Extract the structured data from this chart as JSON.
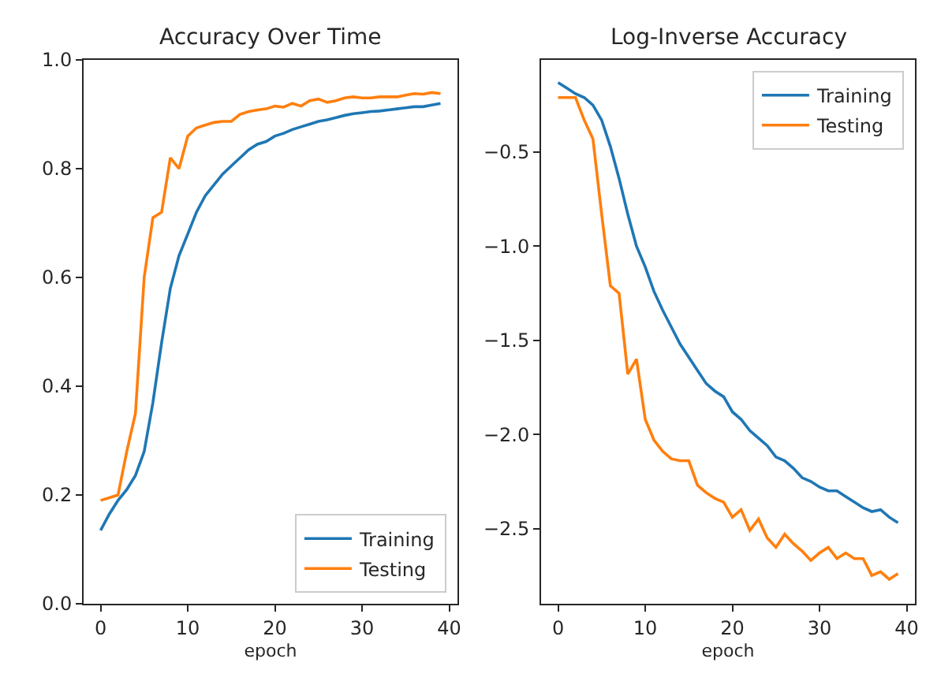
{
  "chart_data": [
    {
      "type": "line",
      "title": "Accuracy Over Time",
      "xlabel": "epoch",
      "x": [
        0,
        1,
        2,
        3,
        4,
        5,
        6,
        7,
        8,
        9,
        10,
        11,
        12,
        13,
        14,
        15,
        16,
        17,
        18,
        19,
        20,
        21,
        22,
        23,
        24,
        25,
        26,
        27,
        28,
        29,
        30,
        31,
        32,
        33,
        34,
        35,
        36,
        37,
        38,
        39
      ],
      "xlim": [
        -1.95,
        40.95
      ],
      "xticks": [
        0,
        10,
        20,
        30,
        40
      ],
      "ylim": [
        0,
        1
      ],
      "yticks": [
        {
          "value": 0,
          "label": "0.0"
        },
        {
          "value": 0.2,
          "label": "0.2"
        },
        {
          "value": 0.4,
          "label": "0.4"
        },
        {
          "value": 0.6,
          "label": "0.6"
        },
        {
          "value": 0.8,
          "label": "0.8"
        },
        {
          "value": 1,
          "label": "1.0"
        }
      ],
      "legend": "bottom right",
      "grid": false,
      "series": [
        {
          "name": "Training",
          "color": "#1f77b4",
          "values": [
            0.135,
            0.165,
            0.19,
            0.21,
            0.236,
            0.28,
            0.37,
            0.48,
            0.58,
            0.64,
            0.68,
            0.72,
            0.75,
            0.77,
            0.79,
            0.805,
            0.82,
            0.835,
            0.845,
            0.85,
            0.86,
            0.865,
            0.872,
            0.877,
            0.882,
            0.887,
            0.89,
            0.894,
            0.898,
            0.901,
            0.903,
            0.905,
            0.906,
            0.908,
            0.91,
            0.912,
            0.914,
            0.914,
            0.917,
            0.92
          ]
        },
        {
          "name": "Testing",
          "color": "#ff7f0e",
          "values": [
            0.19,
            0.195,
            0.2,
            0.28,
            0.35,
            0.6,
            0.71,
            0.72,
            0.82,
            0.8,
            0.86,
            0.875,
            0.88,
            0.885,
            0.887,
            0.887,
            0.9,
            0.905,
            0.908,
            0.91,
            0.915,
            0.913,
            0.92,
            0.915,
            0.925,
            0.928,
            0.922,
            0.925,
            0.93,
            0.932,
            0.93,
            0.93,
            0.932,
            0.932,
            0.932,
            0.935,
            0.938,
            0.937,
            0.94,
            0.938
          ]
        }
      ]
    },
    {
      "type": "line",
      "title": "Log-Inverse Accuracy",
      "xlabel": "epoch",
      "x": [
        0,
        1,
        2,
        3,
        4,
        5,
        6,
        7,
        8,
        9,
        10,
        11,
        12,
        13,
        14,
        15,
        16,
        17,
        18,
        19,
        20,
        21,
        22,
        23,
        24,
        25,
        26,
        27,
        28,
        29,
        30,
        31,
        32,
        33,
        34,
        35,
        36,
        37,
        38,
        39
      ],
      "xlim": [
        -1.95,
        40.95
      ],
      "xticks": [
        0,
        10,
        20,
        30,
        40
      ],
      "ylim": [
        -2.9,
        -0.01
      ],
      "yticks": [
        {
          "value": -0.5,
          "label": "−0.5"
        },
        {
          "value": -1,
          "label": "−1.0"
        },
        {
          "value": -1.5,
          "label": "−1.5"
        },
        {
          "value": -2,
          "label": "−2.0"
        },
        {
          "value": -2.5,
          "label": "−2.5"
        }
      ],
      "legend": "top right",
      "grid": false,
      "series": [
        {
          "name": "Training",
          "color": "#1f77b4",
          "values": [
            -0.13,
            -0.16,
            -0.19,
            -0.21,
            -0.25,
            -0.33,
            -0.47,
            -0.64,
            -0.83,
            -1.0,
            -1.11,
            -1.24,
            -1.34,
            -1.43,
            -1.52,
            -1.59,
            -1.66,
            -1.73,
            -1.77,
            -1.8,
            -1.88,
            -1.92,
            -1.98,
            -2.02,
            -2.06,
            -2.12,
            -2.14,
            -2.18,
            -2.23,
            -2.25,
            -2.28,
            -2.3,
            -2.3,
            -2.33,
            -2.36,
            -2.39,
            -2.41,
            -2.4,
            -2.44,
            -2.47
          ]
        },
        {
          "name": "Testing",
          "color": "#ff7f0e",
          "values": [
            -0.21,
            -0.21,
            -0.21,
            -0.33,
            -0.43,
            -0.83,
            -1.21,
            -1.25,
            -1.68,
            -1.6,
            -1.92,
            -2.03,
            -2.09,
            -2.13,
            -2.14,
            -2.14,
            -2.27,
            -2.31,
            -2.34,
            -2.36,
            -2.44,
            -2.4,
            -2.51,
            -2.45,
            -2.55,
            -2.6,
            -2.53,
            -2.58,
            -2.62,
            -2.67,
            -2.63,
            -2.6,
            -2.66,
            -2.63,
            -2.66,
            -2.66,
            -2.75,
            -2.73,
            -2.77,
            -2.74
          ]
        }
      ]
    }
  ]
}
